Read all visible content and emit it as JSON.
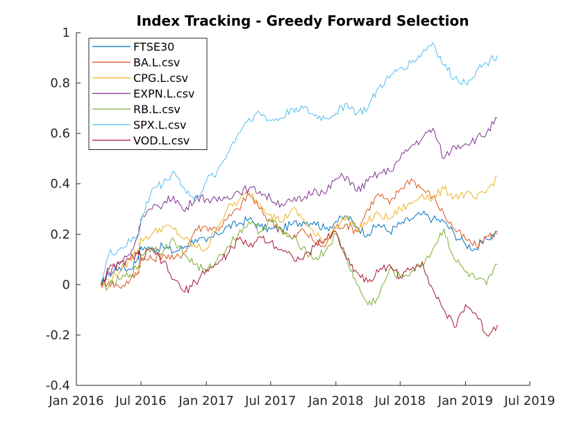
{
  "chart_data": {
    "type": "line",
    "title": "Index Tracking - Greedy Forward Selection",
    "xlabel": "",
    "ylabel": "",
    "xlim": [
      "2016-01-01",
      "2019-07-01"
    ],
    "ylim": [
      -0.4,
      1
    ],
    "x_ticks": [
      "Jan 2016",
      "Jul 2016",
      "Jan 2017",
      "Jul 2017",
      "Jan 2018",
      "Jul 2018",
      "Jan 2019",
      "Jul 2019"
    ],
    "y_ticks": [
      "1",
      "0.8",
      "0.6",
      "0.4",
      "0.2",
      "0",
      "-0.2",
      "-0.4"
    ],
    "y_tick_values": [
      1,
      0.8,
      0.6,
      0.4,
      0.2,
      0,
      -0.2,
      -0.4
    ],
    "grid": false,
    "legend_position": "top-left",
    "x": [
      "2016-03-10",
      "2016-04-01",
      "2016-05-01",
      "2016-06-01",
      "2016-06-23",
      "2016-07-01",
      "2016-08-01",
      "2016-09-01",
      "2016-10-01",
      "2016-11-01",
      "2016-12-01",
      "2017-01-01",
      "2017-02-01",
      "2017-03-01",
      "2017-04-01",
      "2017-05-01",
      "2017-06-01",
      "2017-07-01",
      "2017-08-01",
      "2017-09-01",
      "2017-10-01",
      "2017-11-01",
      "2017-12-01",
      "2018-01-01",
      "2018-02-01",
      "2018-03-01",
      "2018-04-01",
      "2018-05-01",
      "2018-06-01",
      "2018-07-01",
      "2018-08-01",
      "2018-09-01",
      "2018-10-01",
      "2018-11-01",
      "2018-12-01",
      "2019-01-01",
      "2019-02-01",
      "2019-03-01",
      "2019-04-01"
    ],
    "series": [
      {
        "name": "FTSE30",
        "color": "#0072BD",
        "values": [
          0.0,
          0.04,
          0.07,
          0.06,
          0.11,
          0.15,
          0.14,
          0.15,
          0.13,
          0.15,
          0.18,
          0.17,
          0.2,
          0.23,
          0.24,
          0.26,
          0.23,
          0.22,
          0.22,
          0.24,
          0.25,
          0.25,
          0.22,
          0.25,
          0.27,
          0.23,
          0.2,
          0.24,
          0.21,
          0.24,
          0.26,
          0.28,
          0.26,
          0.25,
          0.2,
          0.16,
          0.14,
          0.18,
          0.21
        ]
      },
      {
        "name": "BA.L.csv",
        "color": "#D95319",
        "values": [
          0.0,
          0.01,
          -0.01,
          0.02,
          0.05,
          0.1,
          0.1,
          0.12,
          0.1,
          0.13,
          0.22,
          0.23,
          0.22,
          0.26,
          0.3,
          0.36,
          0.3,
          0.25,
          0.22,
          0.18,
          0.22,
          0.17,
          0.15,
          0.23,
          0.24,
          0.21,
          0.3,
          0.36,
          0.32,
          0.38,
          0.42,
          0.38,
          0.35,
          0.28,
          0.22,
          0.18,
          0.15,
          0.19,
          0.2
        ]
      },
      {
        "name": "CPG.L.csv",
        "color": "#EDB120",
        "values": [
          0.0,
          0.02,
          0.05,
          0.1,
          0.14,
          0.18,
          0.2,
          0.23,
          0.22,
          0.18,
          0.15,
          0.14,
          0.23,
          0.3,
          0.33,
          0.37,
          0.32,
          0.28,
          0.25,
          0.3,
          0.26,
          0.2,
          0.17,
          0.23,
          0.27,
          0.22,
          0.25,
          0.28,
          0.26,
          0.3,
          0.32,
          0.36,
          0.34,
          0.38,
          0.35,
          0.36,
          0.34,
          0.37,
          0.43
        ]
      },
      {
        "name": "EXPN.L.csv",
        "color": "#7E2F8E",
        "values": [
          0.0,
          0.05,
          0.09,
          0.12,
          0.2,
          0.26,
          0.3,
          0.32,
          0.35,
          0.29,
          0.35,
          0.34,
          0.33,
          0.35,
          0.37,
          0.38,
          0.37,
          0.34,
          0.32,
          0.33,
          0.34,
          0.38,
          0.36,
          0.42,
          0.43,
          0.37,
          0.41,
          0.44,
          0.45,
          0.5,
          0.55,
          0.58,
          0.62,
          0.5,
          0.55,
          0.56,
          0.58,
          0.6,
          0.66
        ]
      },
      {
        "name": "RB.L.csv",
        "color": "#77AC30",
        "values": [
          0.0,
          -0.01,
          0.02,
          0.04,
          0.07,
          0.12,
          0.15,
          0.13,
          0.18,
          0.12,
          0.08,
          0.05,
          0.1,
          0.15,
          0.2,
          0.25,
          0.21,
          0.26,
          0.21,
          0.18,
          0.15,
          0.1,
          0.13,
          0.2,
          0.1,
          0.0,
          -0.08,
          -0.05,
          0.06,
          0.03,
          0.05,
          0.08,
          0.14,
          0.22,
          0.1,
          0.05,
          0.02,
          0.0,
          0.08
        ]
      },
      {
        "name": "SPX.L.csv",
        "color": "#4DBEEE",
        "values": [
          0.0,
          0.12,
          0.14,
          0.17,
          0.2,
          0.25,
          0.38,
          0.4,
          0.45,
          0.38,
          0.33,
          0.41,
          0.45,
          0.52,
          0.6,
          0.66,
          0.68,
          0.65,
          0.66,
          0.7,
          0.7,
          0.67,
          0.66,
          0.68,
          0.72,
          0.68,
          0.7,
          0.78,
          0.82,
          0.86,
          0.88,
          0.92,
          0.96,
          0.87,
          0.82,
          0.8,
          0.85,
          0.88,
          0.91
        ]
      },
      {
        "name": "VOD.L.csv",
        "color": "#A2142F",
        "values": [
          0.0,
          0.06,
          0.08,
          0.1,
          0.13,
          0.1,
          0.14,
          0.09,
          0.02,
          -0.03,
          0.01,
          0.06,
          0.08,
          0.12,
          0.18,
          0.15,
          0.19,
          0.17,
          0.14,
          0.11,
          0.1,
          0.15,
          0.18,
          0.21,
          0.1,
          0.05,
          0.01,
          0.05,
          0.08,
          0.03,
          0.06,
          0.09,
          -0.02,
          -0.1,
          -0.17,
          -0.08,
          -0.12,
          -0.2,
          -0.16
        ]
      }
    ]
  }
}
